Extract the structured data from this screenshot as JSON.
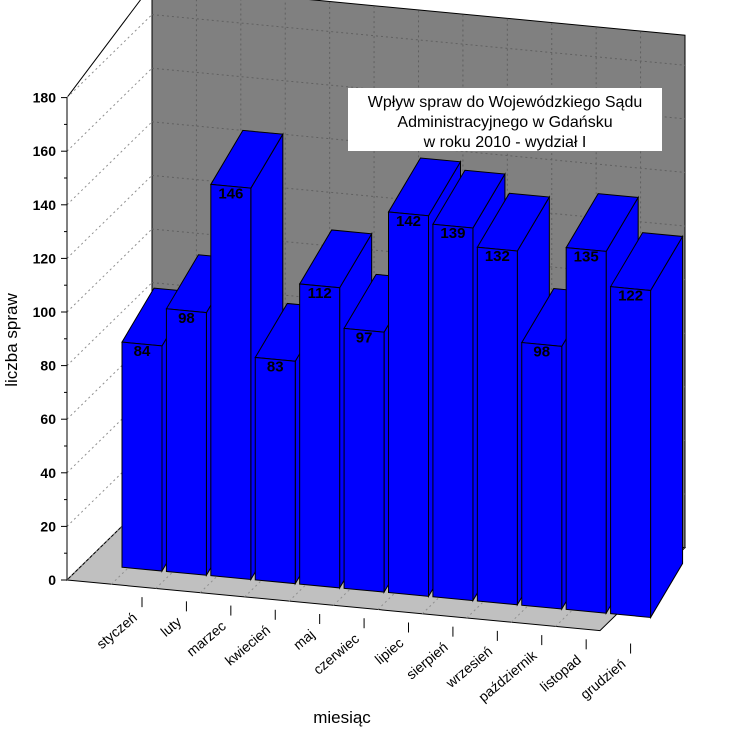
{
  "chart_data": {
    "type": "bar",
    "title": [
      "Wpływ spraw do Wojewódzkiego Sądu",
      "Administracyjnego w Gdańsku",
      "w roku 2010 - wydział I"
    ],
    "xlabel": "miesiąc",
    "ylabel": "liczba spraw",
    "categories": [
      "styczeń",
      "luty",
      "marzec",
      "kwiecień",
      "maj",
      "czerwiec",
      "lipiec",
      "sierpień",
      "wrzesień",
      "październik",
      "listopad",
      "grudzień"
    ],
    "values": [
      84,
      98,
      146,
      83,
      112,
      97,
      142,
      139,
      132,
      98,
      135,
      122
    ],
    "yticks": [
      0,
      20,
      40,
      60,
      80,
      100,
      120,
      140,
      160,
      180
    ],
    "ylim": [
      0,
      180
    ],
    "three_d": true,
    "grid": false,
    "colors": {
      "bar_front": "#0000ff",
      "bar_side": "#0000ff",
      "bar_edge": "#000000",
      "back_wall": "#808080",
      "floor": "#c0c0c0",
      "back_wall_grid": "#606060"
    }
  }
}
